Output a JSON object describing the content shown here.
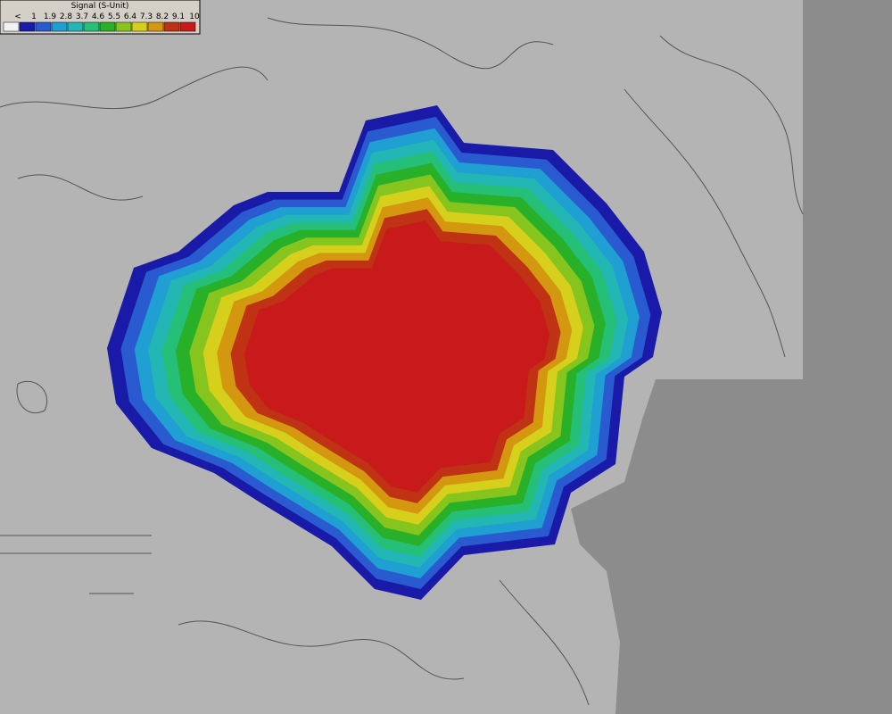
{
  "legend": {
    "title": "Signal (S-Unit)",
    "items": [
      {
        "label": "<",
        "color": "#f2f2f2"
      },
      {
        "label": "1",
        "color": "#1a1aa8"
      },
      {
        "label": "1.9",
        "color": "#2a5ad0"
      },
      {
        "label": "2.8",
        "color": "#1f9fd2"
      },
      {
        "label": "3.7",
        "color": "#22b7b4"
      },
      {
        "label": "4.6",
        "color": "#25bf78"
      },
      {
        "label": "5.5",
        "color": "#28b028"
      },
      {
        "label": "6.4",
        "color": "#86c41e"
      },
      {
        "label": "7.3",
        "color": "#d6d01c"
      },
      {
        "label": "8.2",
        "color": "#d49810"
      },
      {
        "label": "9.1",
        "color": "#c03214"
      },
      {
        "label": "10",
        "color": "#c81a1a"
      }
    ]
  }
}
